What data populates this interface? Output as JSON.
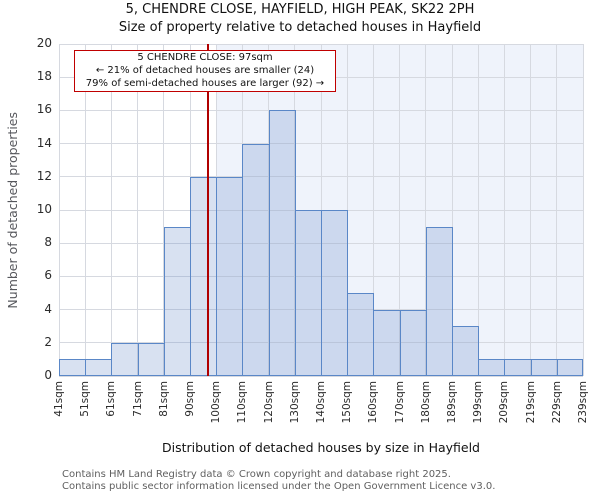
{
  "annotation": {
    "line1": "5 CHENDRE CLOSE: 97sqm",
    "line2": "← 21% of detached houses are smaller (24)",
    "line3": "79% of semi-detached houses are larger (92) →"
  },
  "footer": {
    "line1": "Contains HM Land Registry data © Crown copyright and database right 2025.",
    "line2": "Contains public sector information licensed under the Open Government Licence v3.0."
  },
  "chart_data": {
    "type": "bar",
    "title": "5, CHENDRE CLOSE, HAYFIELD, HIGH PEAK, SK22 2PH",
    "subtitle": "Size of property relative to detached houses in Hayfield",
    "xlabel": "Distribution of detached houses by size in Hayfield",
    "ylabel": "Number of detached properties",
    "bin_edges_sqm": [
      41,
      51,
      61,
      71,
      81,
      90,
      100,
      110,
      120,
      130,
      140,
      150,
      160,
      170,
      180,
      189,
      199,
      209,
      219,
      229,
      239
    ],
    "tick_labels": [
      "41sqm",
      "51sqm",
      "61sqm",
      "71sqm",
      "81sqm",
      "90sqm",
      "100sqm",
      "110sqm",
      "120sqm",
      "130sqm",
      "140sqm",
      "150sqm",
      "160sqm",
      "170sqm",
      "180sqm",
      "189sqm",
      "199sqm",
      "209sqm",
      "219sqm",
      "229sqm",
      "239sqm"
    ],
    "values": [
      1,
      1,
      2,
      2,
      9,
      12,
      12,
      14,
      16,
      10,
      10,
      5,
      4,
      4,
      9,
      3,
      1,
      1,
      1,
      1
    ],
    "ylim": [
      0,
      20
    ],
    "ytick_step": 2,
    "grid": true,
    "marker": {
      "sqm": 97
    },
    "shade_from_sqm": 100,
    "colors": {
      "bar_fill": "rgba(114, 148, 203, 0.28)",
      "bar_border": "#5a87c7",
      "grid": "#d6d9e0",
      "shade": "#eff3fb",
      "marker_line": "#b00000",
      "annotation_border": "#c00000"
    }
  }
}
